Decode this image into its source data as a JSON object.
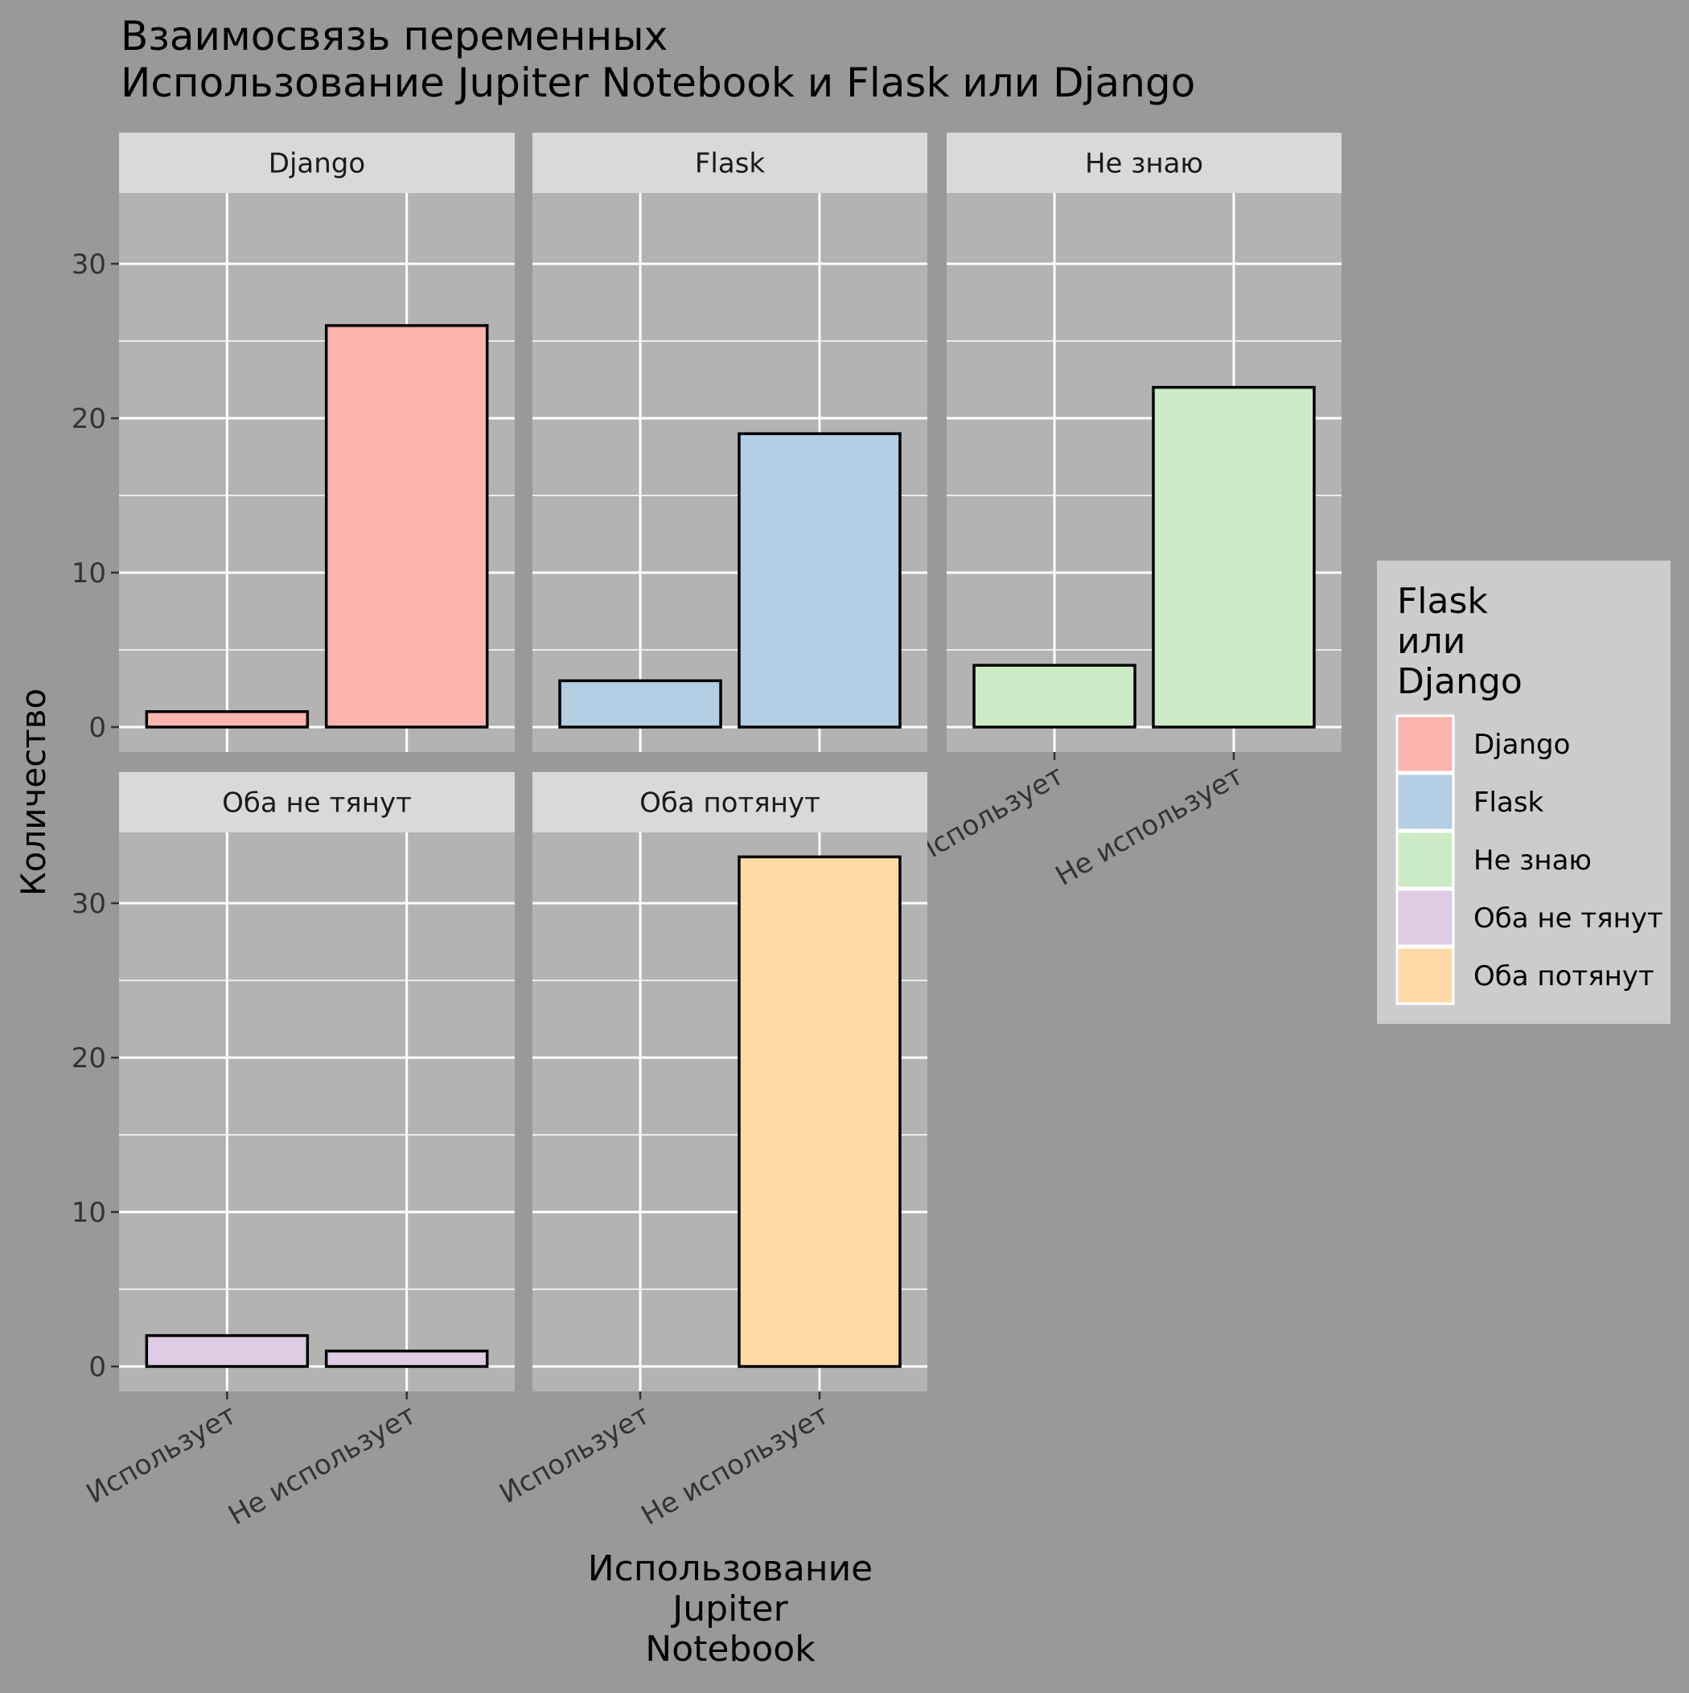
{
  "chart_data": {
    "type": "bar",
    "title": "Взаимосвязь переменных\n Использование Jupiter Notebook и Flask или Django",
    "xlabel": "Использование\nJupiter\nNotebook",
    "ylabel": "Количество",
    "categories": [
      "Использует",
      "Не использует"
    ],
    "ylim": [
      0,
      35
    ],
    "yticks": [
      0,
      10,
      20,
      30
    ],
    "grid": true,
    "legend": {
      "title": "Flask\nили\nDjango",
      "position": "right",
      "entries": [
        "Django",
        "Flask",
        "Не знаю",
        "Оба не тянут",
        "Оба потянут"
      ]
    },
    "facets": [
      {
        "name": "Django",
        "values": [
          1,
          26
        ],
        "color": "#FBB4AE"
      },
      {
        "name": "Flask",
        "values": [
          3,
          19
        ],
        "color": "#B3CDE3"
      },
      {
        "name": "Не знаю",
        "values": [
          4,
          22
        ],
        "color": "#CCEBC5"
      },
      {
        "name": "Оба не тянут",
        "values": [
          2,
          1
        ],
        "color": "#DECBE4"
      },
      {
        "name": "Оба потянут",
        "values": [
          0,
          33
        ],
        "color": "#FED9A6"
      }
    ],
    "colors": {
      "background": "#999999",
      "panel": "#B3B3B3",
      "strip": "#D9D9D9",
      "legend_bg": "#CCCCCC",
      "grid": "#FFFFFF",
      "bar_outline": "#000000"
    }
  }
}
